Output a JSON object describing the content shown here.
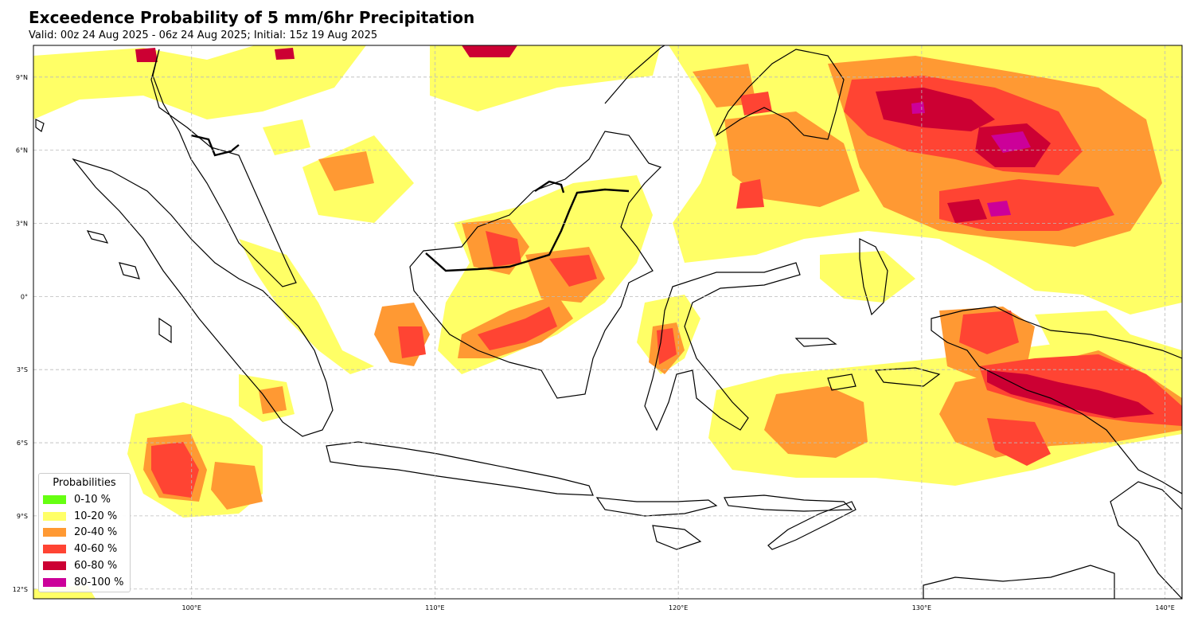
{
  "title": "Exceedence Probability of 5 mm/6hr Precipitation",
  "subtitle": "Valid: 00z 24 Aug 2025 - 06z 24 Aug 2025; Initial: 15z 19 Aug 2025",
  "axes": {
    "lon_range": [
      93.5,
      140.7
    ],
    "lat_range": [
      -12.4,
      10.3
    ],
    "lon_ticks": [
      {
        "value": 100,
        "label": "100°E"
      },
      {
        "value": 110,
        "label": "110°E"
      },
      {
        "value": 120,
        "label": "120°E"
      },
      {
        "value": 130,
        "label": "130°E"
      },
      {
        "value": 140,
        "label": "140°E"
      }
    ],
    "lat_ticks": [
      {
        "value": 9,
        "label": "9°N"
      },
      {
        "value": 6,
        "label": "6°N"
      },
      {
        "value": 3,
        "label": "3°N"
      },
      {
        "value": 0,
        "label": "0°"
      },
      {
        "value": -3,
        "label": "3°S"
      },
      {
        "value": -6,
        "label": "6°S"
      },
      {
        "value": -9,
        "label": "9°S"
      },
      {
        "value": -12,
        "label": "12°S"
      }
    ],
    "gridlines": true
  },
  "legend": {
    "title": "Probabilities",
    "placement": "lower-left",
    "items": [
      {
        "label": "0-10 %",
        "color": "#66ff11"
      },
      {
        "label": "10-20 %",
        "color": "#ffff66"
      },
      {
        "label": "20-40 %",
        "color": "#ff9933"
      },
      {
        "label": "40-60 %",
        "color": "#ff4433"
      },
      {
        "label": "60-80 %",
        "color": "#cc0033"
      },
      {
        "label": "80-100 %",
        "color": "#cc0099"
      }
    ]
  },
  "land_color": "#ffffff",
  "coastline_color": "#000000"
}
